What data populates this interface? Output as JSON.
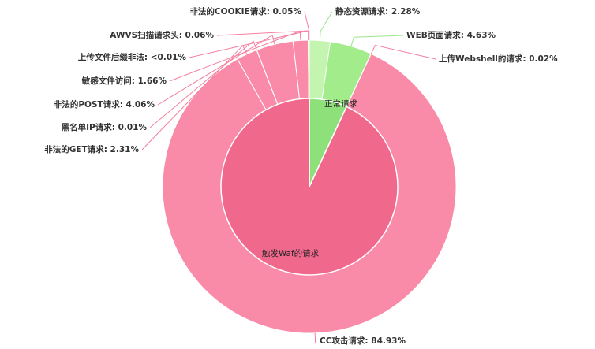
{
  "chart_data": {
    "type": "nested-pie",
    "inner": {
      "categories": [
        "正常请求",
        "触发Waf的请求"
      ],
      "values": [
        6.91,
        93.09
      ],
      "colors": [
        "#8ee07a",
        "#f0688c"
      ]
    },
    "outer": {
      "value_labels": [
        "静态资源请求: 2.28%",
        "WEB页面请求: 4.63%",
        "上传Webshell的请求: 0.02%",
        "CC攻击请求: 84.93%",
        "非法的GET请求: 2.31%",
        "黑名单IP请求: 0.01%",
        "非法的POST请求: 4.06%",
        "敏感文件访问: 1.66%",
        "上传文件后缀非法: <0.01%",
        "AWVS扫描请求头: 0.06%",
        "非法的COOKIE请求: 0.05%"
      ],
      "values": [
        2.28,
        4.63,
        0.02,
        84.93,
        2.31,
        0.01,
        4.06,
        1.66,
        0.005,
        0.06,
        0.05
      ],
      "colors": [
        "#c4f5b0",
        "#a3ec8c",
        "#f98aa8",
        "#f98aa8",
        "#f98aa8",
        "#f98aa8",
        "#f98aa8",
        "#f98aa8",
        "#f98aa8",
        "#f98aa8",
        "#f98aa8"
      ]
    }
  }
}
